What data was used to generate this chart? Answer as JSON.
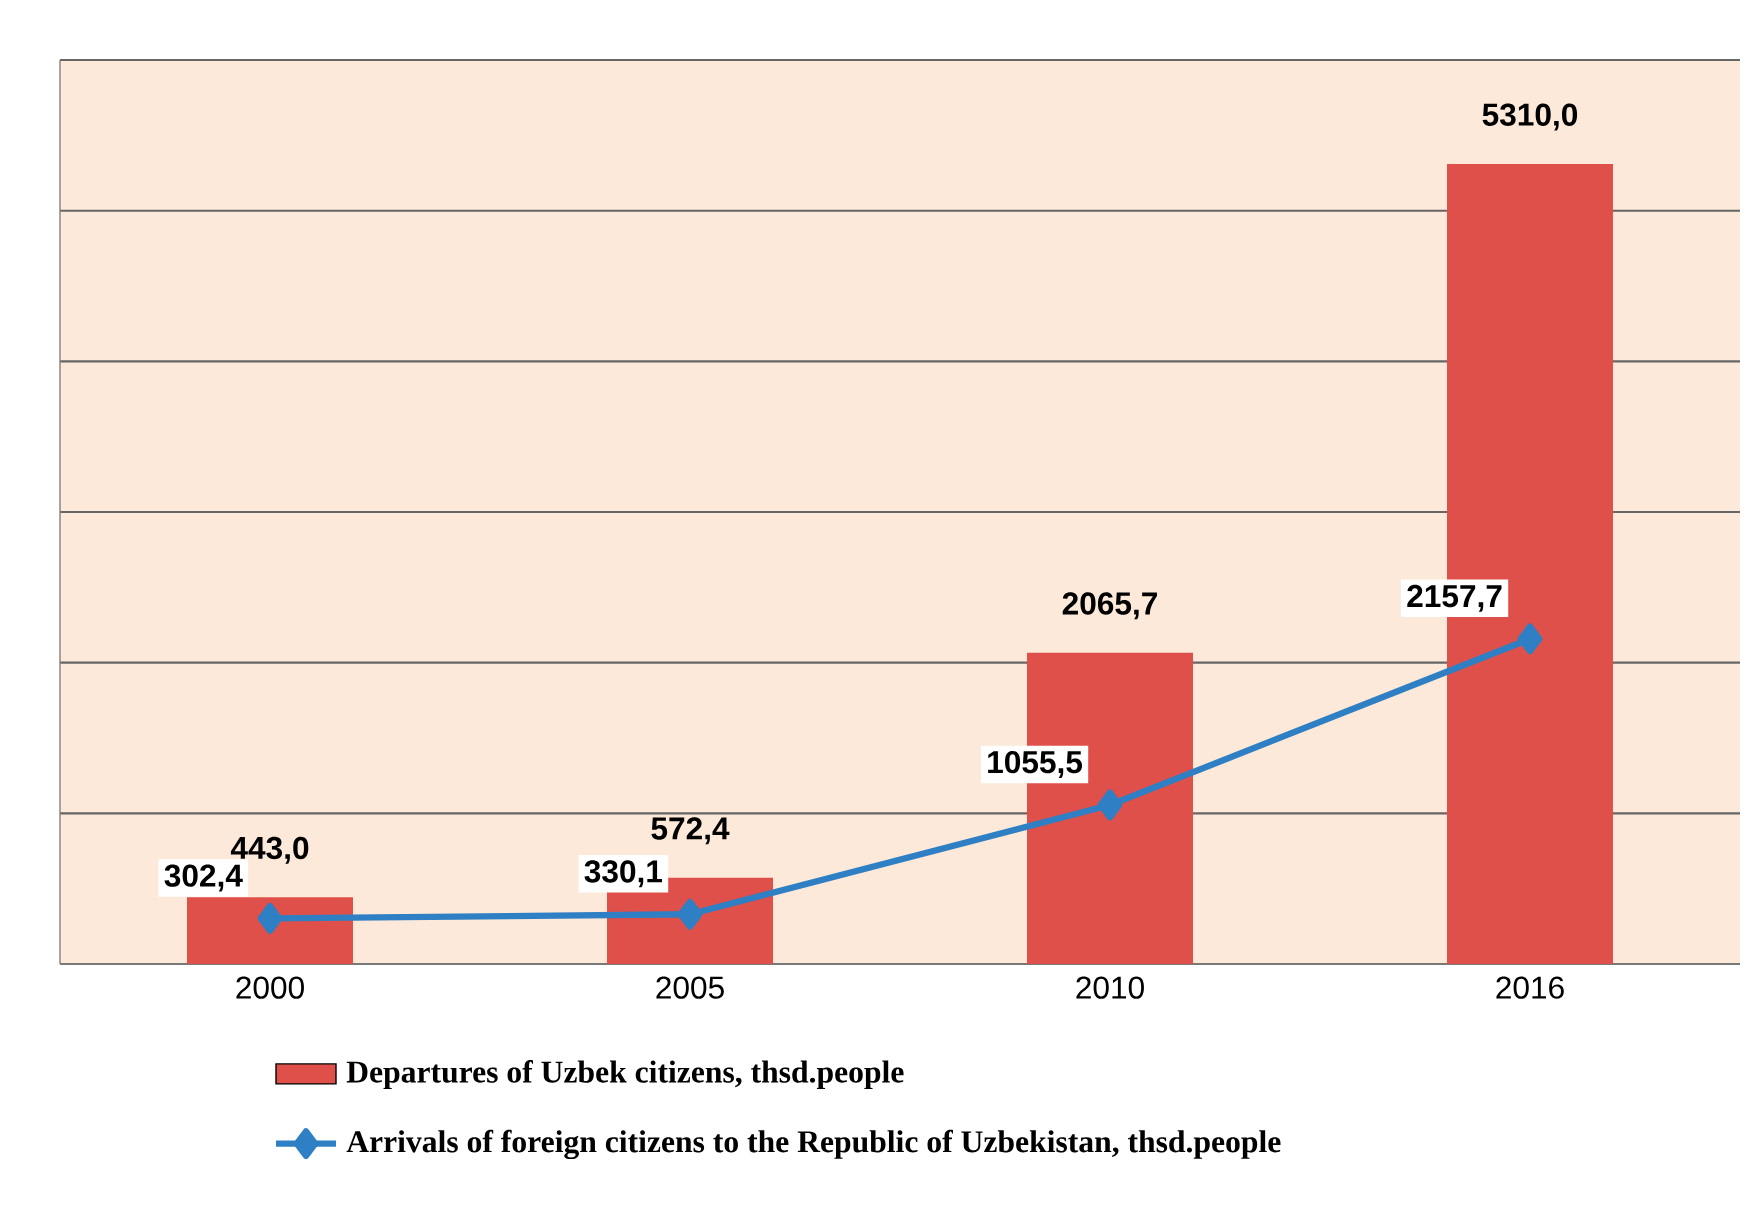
{
  "chart_data": {
    "type": "bar",
    "categories": [
      "2000",
      "2005",
      "2010",
      "2016"
    ],
    "series": [
      {
        "name": "Departures of Uzbek citizens, thsd.people",
        "color": "#e0504b",
        "values": [
          443.0,
          572.4,
          2065.7,
          5310.0
        ],
        "value_labels": [
          "443,0",
          "572,4",
          "2065,7",
          "5310,0"
        ]
      },
      {
        "type": "line",
        "name": "Arrivals of foreign citizens to the Republic of Uzbekistan, thsd.people",
        "color": "#2e7fc4",
        "values": [
          302.4,
          330.1,
          1055.5,
          2157.7
        ],
        "value_labels": [
          "302,4",
          "330,1",
          "1055,5",
          "2157,7"
        ]
      }
    ],
    "ylim": [
      0,
      6000
    ],
    "yticks": [
      {
        "value": 0,
        "label": null
      },
      {
        "value": 1000,
        "label": null
      },
      {
        "value": 2000,
        "label": null
      },
      {
        "value": 3000,
        "label": null
      },
      {
        "value": 4000,
        "label": null
      },
      {
        "value": 5000,
        "label": null
      },
      {
        "value": 6000,
        "label": null
      }
    ],
    "tick_labels": "x",
    "grid": "y",
    "legend": "bottom",
    "marker": "diamond",
    "line_style": "solid"
  }
}
